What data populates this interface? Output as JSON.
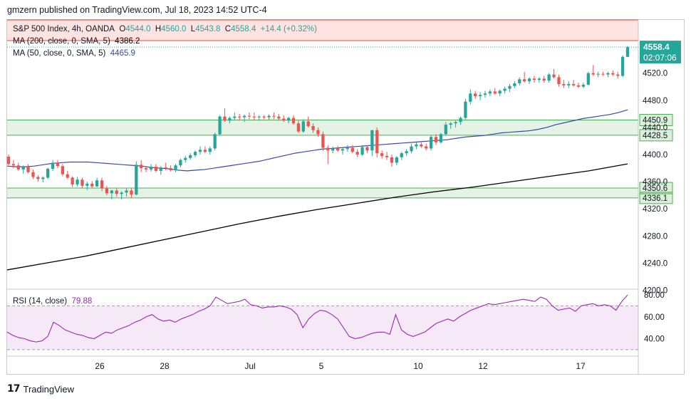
{
  "header": {
    "published": "gmzern published on TradingView.com, Jul 18, 2023 14:52 UTC-4"
  },
  "legend": {
    "symbol": "S&P 500 Index, 4h, OANDA",
    "o_label": "O",
    "o": "4544.0",
    "h_label": "H",
    "h": "4560.0",
    "l_label": "L",
    "l": "4543.8",
    "c_label": "C",
    "c": "4558.4",
    "change": "+14.4 (+0.32%)",
    "ma200_label": "MA (200, close, 0, SMA, 5)",
    "ma200_value": "4386.2",
    "ma50_label": "MA (50, close, 0, SMA, 5)",
    "ma50_value": "4465.9",
    "rsi_label": "RSI (14, close)",
    "rsi_value": "79.88"
  },
  "price_tag": {
    "price": "4558.4",
    "countdown": "02:07:06"
  },
  "footer": {
    "brand": "TradingView"
  },
  "colors": {
    "up": "#26a69a",
    "down": "#ef5350",
    "ma50": "#3949ab",
    "ma200": "#000000",
    "rsi": "#9c27b0",
    "zone_green": "#4caf50",
    "zone_red": "#f44336"
  },
  "chart_data": {
    "type": "candlestick",
    "y_ticks": [
      4200,
      4240,
      4280,
      4320,
      4360,
      4400,
      4440,
      4480,
      4520
    ],
    "y_tick_labels": [
      "4200.0",
      "4240.0",
      "4280.0",
      "4320.0",
      "4360.0",
      "4400.0",
      "4440.0",
      "4480.0",
      "4520.0"
    ],
    "x_labels": [
      "26",
      "28",
      "Jul",
      "5",
      "10",
      "12",
      "17"
    ],
    "zones": [
      {
        "low": 4428.5,
        "high": 4450.9,
        "color": "green",
        "labels": [
          "4450.9",
          "4428.5"
        ]
      },
      {
        "low": 4336.1,
        "high": 4350.6,
        "color": "green",
        "labels": [
          "4350.6",
          "4336.1"
        ]
      },
      {
        "low": 4568,
        "high": 4605,
        "color": "red",
        "labels": []
      }
    ],
    "candles": [
      [
        4397,
        4400,
        4384,
        4386
      ],
      [
        4386,
        4392,
        4380,
        4384
      ],
      [
        4384,
        4388,
        4376,
        4378
      ],
      [
        4378,
        4384,
        4372,
        4382
      ],
      [
        4382,
        4386,
        4372,
        4374
      ],
      [
        4374,
        4378,
        4364,
        4367
      ],
      [
        4367,
        4370,
        4360,
        4364
      ],
      [
        4364,
        4368,
        4359,
        4366
      ],
      [
        4366,
        4381,
        4364,
        4379
      ],
      [
        4379,
        4392,
        4376,
        4388
      ],
      [
        4388,
        4392,
        4380,
        4383
      ],
      [
        4383,
        4386,
        4368,
        4371
      ],
      [
        4371,
        4376,
        4364,
        4366
      ],
      [
        4366,
        4368,
        4352,
        4356
      ],
      [
        4356,
        4367,
        4353,
        4363
      ],
      [
        4363,
        4366,
        4350,
        4354
      ],
      [
        4354,
        4360,
        4348,
        4357
      ],
      [
        4357,
        4361,
        4350,
        4353
      ],
      [
        4353,
        4366,
        4352,
        4362
      ],
      [
        4362,
        4366,
        4346,
        4350
      ],
      [
        4350,
        4354,
        4340,
        4343
      ],
      [
        4343,
        4348,
        4334,
        4347
      ],
      [
        4347,
        4350,
        4338,
        4342
      ],
      [
        4342,
        4346,
        4334,
        4344
      ],
      [
        4344,
        4350,
        4338,
        4347
      ],
      [
        4347,
        4350,
        4336,
        4341
      ],
      [
        4341,
        4390,
        4340,
        4385
      ],
      [
        4385,
        4392,
        4374,
        4380
      ],
      [
        4380,
        4383,
        4374,
        4378
      ],
      [
        4378,
        4386,
        4375,
        4382
      ],
      [
        4382,
        4386,
        4374,
        4376
      ],
      [
        4376,
        4383,
        4370,
        4381
      ],
      [
        4381,
        4388,
        4377,
        4380
      ],
      [
        4380,
        4384,
        4375,
        4377
      ],
      [
        4377,
        4386,
        4374,
        4384
      ],
      [
        4384,
        4394,
        4381,
        4392
      ],
      [
        4392,
        4398,
        4388,
        4395
      ],
      [
        4395,
        4402,
        4392,
        4399
      ],
      [
        4399,
        4406,
        4396,
        4404
      ],
      [
        4404,
        4412,
        4400,
        4407
      ],
      [
        4407,
        4412,
        4402,
        4404
      ],
      [
        4404,
        4412,
        4400,
        4409
      ],
      [
        4409,
        4432,
        4406,
        4430
      ],
      [
        4430,
        4458,
        4428,
        4456
      ],
      [
        4456,
        4468,
        4448,
        4450
      ],
      [
        4450,
        4456,
        4446,
        4454
      ],
      [
        4454,
        4462,
        4450,
        4456
      ],
      [
        4456,
        4460,
        4450,
        4455
      ],
      [
        4455,
        4459,
        4448,
        4457
      ],
      [
        4457,
        4462,
        4452,
        4456
      ],
      [
        4456,
        4462,
        4450,
        4455
      ],
      [
        4455,
        4458,
        4450,
        4456
      ],
      [
        4456,
        4458,
        4452,
        4455
      ],
      [
        4455,
        4459,
        4451,
        4457
      ],
      [
        4457,
        4462,
        4452,
        4456
      ],
      [
        4456,
        4460,
        4450,
        4453
      ],
      [
        4453,
        4458,
        4448,
        4450
      ],
      [
        4450,
        4456,
        4446,
        4454
      ],
      [
        4454,
        4458,
        4444,
        4446
      ],
      [
        4446,
        4450,
        4432,
        4434
      ],
      [
        4434,
        4452,
        4432,
        4449
      ],
      [
        4449,
        4456,
        4440,
        4442
      ],
      [
        4442,
        4446,
        4432,
        4436
      ],
      [
        4436,
        4440,
        4426,
        4430
      ],
      [
        4430,
        4434,
        4405,
        4410
      ],
      [
        4410,
        4414,
        4386,
        4406
      ],
      [
        4406,
        4412,
        4402,
        4409
      ],
      [
        4409,
        4413,
        4404,
        4406
      ],
      [
        4406,
        4410,
        4400,
        4408
      ],
      [
        4408,
        4414,
        4404,
        4410
      ],
      [
        4410,
        4414,
        4402,
        4404
      ],
      [
        4404,
        4408,
        4396,
        4400
      ],
      [
        4400,
        4414,
        4398,
        4411
      ],
      [
        4411,
        4414,
        4402,
        4406
      ],
      [
        4406,
        4436,
        4398,
        4436
      ],
      [
        4436,
        4440,
        4396,
        4402
      ],
      [
        4402,
        4406,
        4394,
        4398
      ],
      [
        4398,
        4404,
        4392,
        4396
      ],
      [
        4396,
        4400,
        4382,
        4388
      ],
      [
        4388,
        4398,
        4384,
        4396
      ],
      [
        4396,
        4404,
        4392,
        4402
      ],
      [
        4402,
        4408,
        4398,
        4405
      ],
      [
        4405,
        4416,
        4402,
        4412
      ],
      [
        4412,
        4418,
        4408,
        4415
      ],
      [
        4415,
        4418,
        4410,
        4412
      ],
      [
        4412,
        4416,
        4406,
        4409
      ],
      [
        4409,
        4428,
        4406,
        4426
      ],
      [
        4426,
        4430,
        4414,
        4418
      ],
      [
        4418,
        4432,
        4416,
        4430
      ],
      [
        4430,
        4448,
        4428,
        4444
      ],
      [
        4444,
        4448,
        4438,
        4446
      ],
      [
        4446,
        4450,
        4440,
        4448
      ],
      [
        4448,
        4456,
        4444,
        4454
      ],
      [
        4454,
        4482,
        4452,
        4478
      ],
      [
        4478,
        4496,
        4474,
        4490
      ],
      [
        4490,
        4494,
        4482,
        4486
      ],
      [
        4486,
        4492,
        4480,
        4488
      ],
      [
        4488,
        4494,
        4484,
        4490
      ],
      [
        4490,
        4496,
        4486,
        4493
      ],
      [
        4493,
        4498,
        4488,
        4490
      ],
      [
        4490,
        4496,
        4486,
        4494
      ],
      [
        4494,
        4500,
        4490,
        4497
      ],
      [
        4497,
        4504,
        4492,
        4501
      ],
      [
        4501,
        4508,
        4498,
        4505
      ],
      [
        4505,
        4514,
        4502,
        4511
      ],
      [
        4511,
        4522,
        4506,
        4508
      ],
      [
        4508,
        4514,
        4504,
        4512
      ],
      [
        4512,
        4516,
        4506,
        4510
      ],
      [
        4510,
        4514,
        4506,
        4512
      ],
      [
        4512,
        4516,
        4506,
        4509
      ],
      [
        4509,
        4520,
        4506,
        4518
      ],
      [
        4518,
        4526,
        4512,
        4514
      ],
      [
        4514,
        4518,
        4500,
        4504
      ],
      [
        4504,
        4510,
        4498,
        4502
      ],
      [
        4502,
        4508,
        4498,
        4504
      ],
      [
        4504,
        4510,
        4500,
        4502
      ],
      [
        4502,
        4506,
        4498,
        4500
      ],
      [
        4500,
        4506,
        4498,
        4503
      ],
      [
        4503,
        4522,
        4502,
        4520
      ],
      [
        4520,
        4532,
        4516,
        4518
      ],
      [
        4518,
        4522,
        4514,
        4519
      ],
      [
        4519,
        4522,
        4516,
        4518
      ],
      [
        4518,
        4522,
        4514,
        4520
      ],
      [
        4520,
        4524,
        4516,
        4518
      ],
      [
        4518,
        4522,
        4512,
        4516
      ],
      [
        4516,
        4546,
        4514,
        4544
      ],
      [
        4544,
        4560,
        4543.8,
        4558.4
      ]
    ],
    "ma50": [
      4383,
      4382,
      4382,
      4383,
      4385,
      4387,
      4388,
      4389,
      4389,
      4389,
      4388,
      4387,
      4386,
      4385,
      4384,
      4383,
      4381,
      4380,
      4379,
      4377,
      4376,
      4377,
      4378,
      4380,
      4382,
      4384,
      4386,
      4388,
      4390,
      4393,
      4396,
      4399,
      4402,
      4404,
      4406,
      4408,
      4409,
      4410,
      4411,
      4412,
      4413,
      4414,
      4415,
      4416,
      4417,
      4418,
      4419,
      4420,
      4421,
      4422,
      4424,
      4426,
      4427,
      4428,
      4430,
      4432,
      4433,
      4434,
      4435,
      4437,
      4440,
      4444,
      4447,
      4450,
      4453,
      4455,
      4457,
      4459,
      4462,
      4465.9
    ],
    "ma200": [
      4230,
      4240,
      4250,
      4262,
      4274,
      4286,
      4298,
      4309,
      4319,
      4328,
      4337,
      4345,
      4352,
      4360,
      4368,
      4376,
      4386.2
    ],
    "rsi": [
      46,
      43,
      41,
      40,
      38,
      37,
      38,
      42,
      55,
      52,
      48,
      46,
      44,
      43,
      41,
      40,
      43,
      46,
      45,
      48,
      50,
      52,
      55,
      57,
      60,
      62,
      58,
      56,
      57,
      55,
      58,
      60,
      62,
      65,
      67,
      70,
      78,
      75,
      72,
      73,
      74,
      76,
      71,
      70,
      68,
      69,
      69,
      70,
      69,
      67,
      62,
      50,
      58,
      63,
      66,
      65,
      62,
      58,
      50,
      42,
      40,
      41,
      43,
      45,
      46,
      46,
      44,
      62,
      48,
      44,
      42,
      44,
      46,
      50,
      54,
      56,
      58,
      56,
      60,
      63,
      66,
      68,
      70,
      72,
      71,
      72,
      73,
      74,
      75,
      76,
      75,
      74,
      78,
      76,
      70,
      66,
      67,
      68,
      65,
      70,
      71,
      72,
      70,
      71,
      70,
      66,
      74,
      79.88
    ],
    "rsi_ticks": [
      40,
      60,
      80
    ],
    "rsi_tick_labels": [
      "40.00",
      "60.00",
      "80.00"
    ],
    "rsi_band": [
      30,
      70
    ]
  }
}
